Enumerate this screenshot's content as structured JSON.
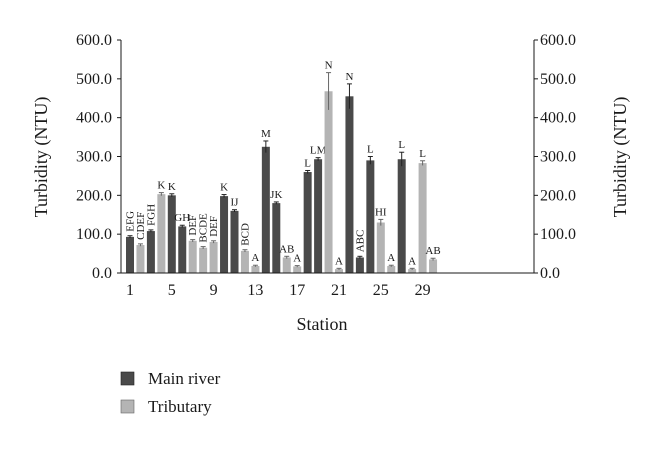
{
  "chart_data": {
    "type": "bar",
    "xlabel": "Station",
    "ylabel_left": "Turbidity (NTU)",
    "ylabel_right": "Turbidity (NTU)",
    "ylim": [
      0,
      600
    ],
    "yticks": [
      "0.0",
      "100.0",
      "200.0",
      "300.0",
      "400.0",
      "500.0",
      "600.0"
    ],
    "ytick_values": [
      0,
      100,
      200,
      300,
      400,
      500,
      600
    ],
    "xtick_labels": [
      "1",
      "5",
      "9",
      "13",
      "17",
      "21",
      "25",
      "29"
    ],
    "xtick_stations": [
      1,
      5,
      9,
      13,
      17,
      21,
      25,
      29
    ],
    "grid": false,
    "legend_position": "bottom-left",
    "series_colors": {
      "Main river": "#4a4a4a",
      "Tributary": "#b4b4b4"
    },
    "series": [
      {
        "name": "Main river",
        "color": "#4a4a4a"
      },
      {
        "name": "Tributary",
        "color": "#b4b4b4"
      }
    ],
    "stations": [
      {
        "station": 1,
        "series": "Main river",
        "value": 93,
        "error": 3,
        "label": "EFG"
      },
      {
        "station": 2,
        "series": "Tributary",
        "value": 72,
        "error": 3,
        "label": "CDEF"
      },
      {
        "station": 3,
        "series": "Main river",
        "value": 108,
        "error": 3,
        "label": "FGH"
      },
      {
        "station": 4,
        "series": "Tributary",
        "value": 203,
        "error": 4,
        "label": "K"
      },
      {
        "station": 5,
        "series": "Main river",
        "value": 200,
        "error": 4,
        "label": "K"
      },
      {
        "station": 6,
        "series": "Main river",
        "value": 120,
        "error": 3,
        "label": "GH"
      },
      {
        "station": 7,
        "series": "Tributary",
        "value": 83,
        "error": 3,
        "label": "DEF"
      },
      {
        "station": 8,
        "series": "Tributary",
        "value": 65,
        "error": 3,
        "label": "BCDE"
      },
      {
        "station": 9,
        "series": "Tributary",
        "value": 80,
        "error": 3,
        "label": "DEF"
      },
      {
        "station": 10,
        "series": "Main river",
        "value": 198,
        "error": 4,
        "label": "K"
      },
      {
        "station": 11,
        "series": "Main river",
        "value": 160,
        "error": 3,
        "label": "IJ"
      },
      {
        "station": 12,
        "series": "Tributary",
        "value": 57,
        "error": 3,
        "label": "BCD"
      },
      {
        "station": 13,
        "series": "Tributary",
        "value": 18,
        "error": 2,
        "label": "A"
      },
      {
        "station": 14,
        "series": "Main river",
        "value": 325,
        "error": 15,
        "label": "M"
      },
      {
        "station": 15,
        "series": "Main river",
        "value": 180,
        "error": 3,
        "label": "JK"
      },
      {
        "station": 16,
        "series": "Tributary",
        "value": 40,
        "error": 3,
        "label": "AB"
      },
      {
        "station": 17,
        "series": "Tributary",
        "value": 17,
        "error": 2,
        "label": "A"
      },
      {
        "station": 18,
        "series": "Main river",
        "value": 260,
        "error": 4,
        "label": "L"
      },
      {
        "station": 19,
        "series": "Main river",
        "value": 293,
        "error": 4,
        "label": "LM"
      },
      {
        "station": 20,
        "series": "Tributary",
        "value": 468,
        "error": 48,
        "label": "N"
      },
      {
        "station": 21,
        "series": "Tributary",
        "value": 10,
        "error": 2,
        "label": "A"
      },
      {
        "station": 22,
        "series": "Main river",
        "value": 455,
        "error": 32,
        "label": "N"
      },
      {
        "station": 23,
        "series": "Main river",
        "value": 40,
        "error": 3,
        "label": "ABC"
      },
      {
        "station": 24,
        "series": "Main river",
        "value": 290,
        "error": 10,
        "label": "L"
      },
      {
        "station": 25,
        "series": "Tributary",
        "value": 130,
        "error": 8,
        "label": "HI"
      },
      {
        "station": 26,
        "series": "Tributary",
        "value": 18,
        "error": 2,
        "label": "A"
      },
      {
        "station": 27,
        "series": "Main river",
        "value": 293,
        "error": 18,
        "label": "L"
      },
      {
        "station": 28,
        "series": "Tributary",
        "value": 10,
        "error": 2,
        "label": "A"
      },
      {
        "station": 29,
        "series": "Tributary",
        "value": 283,
        "error": 6,
        "label": "L"
      },
      {
        "station": 30,
        "series": "Tributary",
        "value": 35,
        "error": 3,
        "label": "AB"
      }
    ]
  }
}
